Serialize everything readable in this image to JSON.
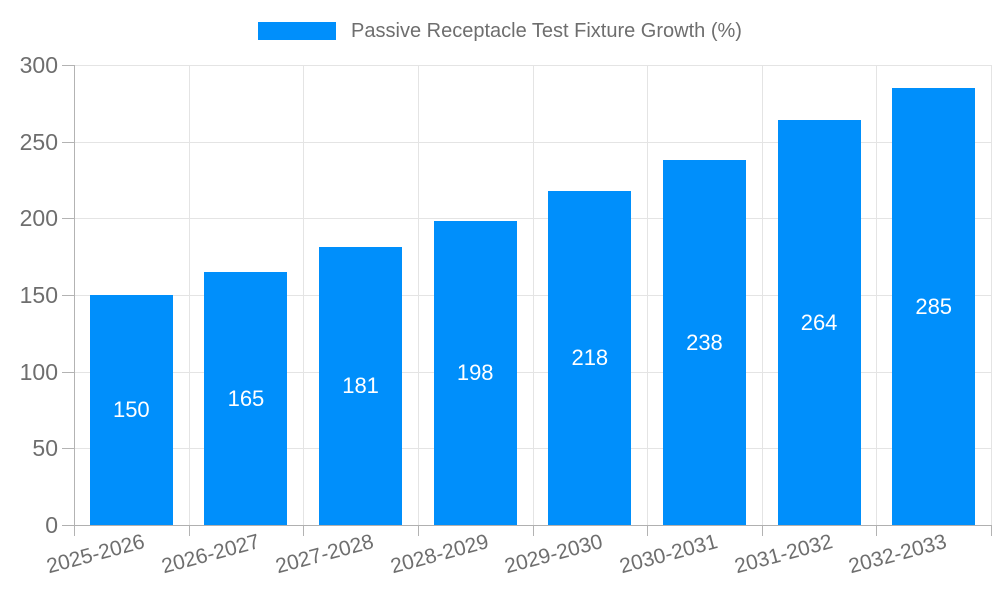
{
  "chart_data": {
    "type": "bar",
    "title": "Passive Receptacle Test Fixture Growth (%)",
    "categories": [
      "2025-2026",
      "2026-2027",
      "2027-2028",
      "2028-2029",
      "2029-2030",
      "2030-2031",
      "2031-2032",
      "2032-2033"
    ],
    "values": [
      150,
      165,
      181,
      198,
      218,
      238,
      264,
      285
    ],
    "xlabel": "",
    "ylabel": "",
    "ylim": [
      0,
      300
    ],
    "yticks": [
      0,
      50,
      100,
      150,
      200,
      250,
      300
    ],
    "grid": true,
    "legend_position": "top-center",
    "value_labels": "inside-center",
    "colors": {
      "bar": "#008FFB",
      "grid": "#e4e4e4",
      "axis": "#b3b3b3",
      "axis_label": "#6e6e6e",
      "value_label": "#ffffff",
      "legend_text": "#6e6e6e",
      "background": "#ffffff"
    }
  }
}
